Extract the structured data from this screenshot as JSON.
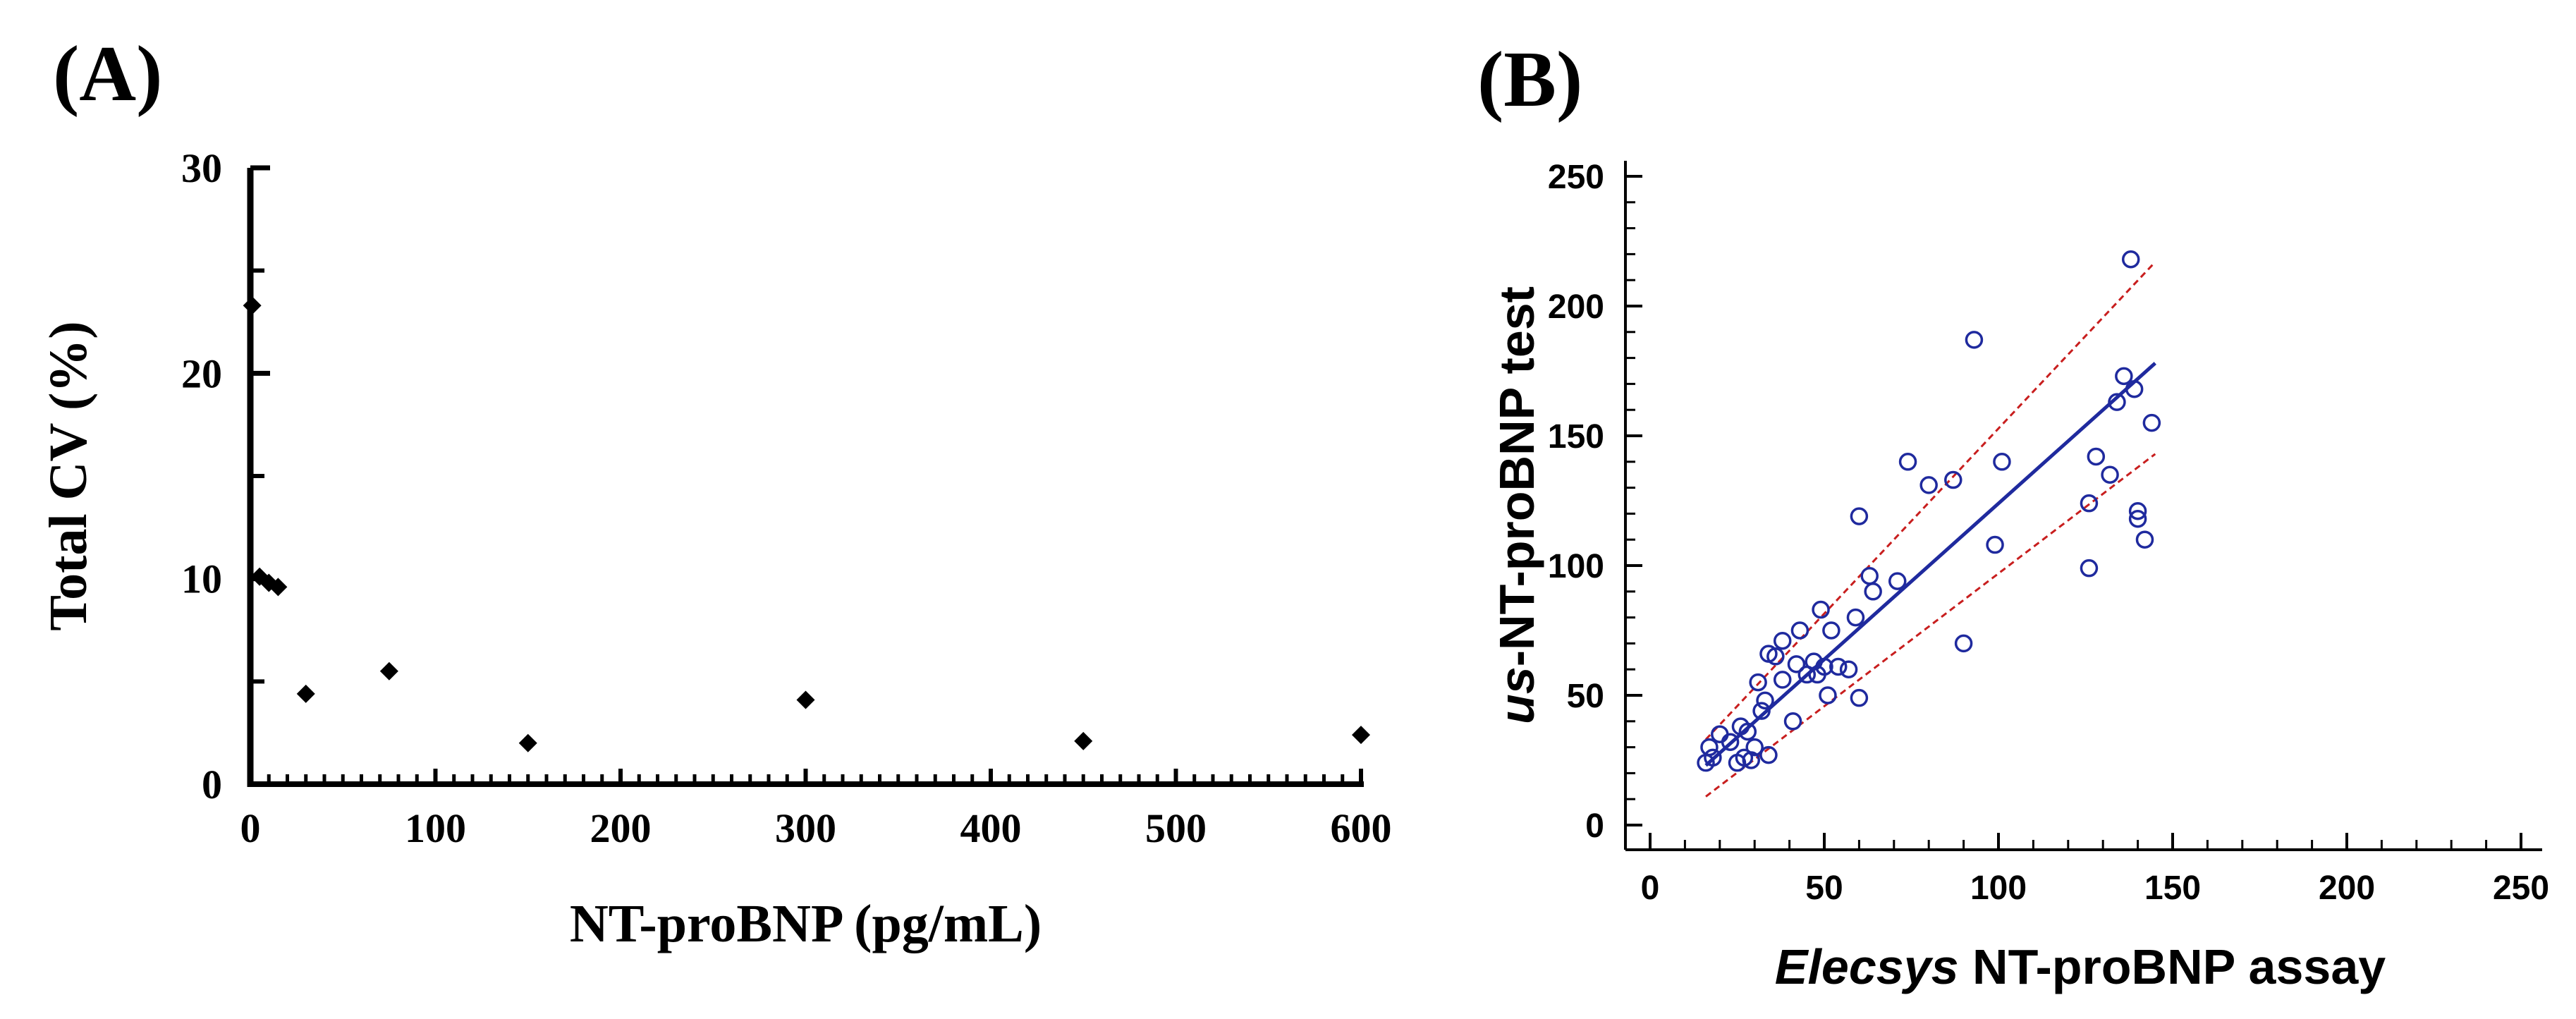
{
  "panel_a": {
    "letter": "(A)"
  },
  "panel_b": {
    "letter": "(B)"
  },
  "chart_data": [
    {
      "id": "A",
      "type": "scatter",
      "title": "",
      "xlabel": "NT-proBNP (pg/mL)",
      "ylabel": "Total CV (%)",
      "xlim": [
        0,
        600
      ],
      "ylim": [
        0,
        30
      ],
      "xticks": [
        0,
        100,
        200,
        300,
        400,
        500,
        600
      ],
      "yticks": [
        0,
        10,
        20,
        30
      ],
      "x_minor_step": 10,
      "y_minor_step": 5,
      "marker": "diamond",
      "marker_color": "#000000",
      "points": [
        {
          "x": 1,
          "y": 23.3
        },
        {
          "x": 5,
          "y": 10.1
        },
        {
          "x": 10,
          "y": 9.8
        },
        {
          "x": 15,
          "y": 9.6
        },
        {
          "x": 30,
          "y": 4.4
        },
        {
          "x": 75,
          "y": 5.5
        },
        {
          "x": 150,
          "y": 2.0
        },
        {
          "x": 300,
          "y": 4.1
        },
        {
          "x": 450,
          "y": 2.1
        },
        {
          "x": 600,
          "y": 2.4
        }
      ]
    },
    {
      "id": "B",
      "type": "scatter",
      "title": "",
      "xlabel_italic": "Elecsys",
      "xlabel_rest": " NT-proBNP assay",
      "ylabel_italic": "us",
      "ylabel_rest": "-NT-proBNP test",
      "xlim": [
        0,
        250
      ],
      "ylim": [
        0,
        250
      ],
      "xticks": [
        0,
        50,
        100,
        150,
        200,
        250
      ],
      "yticks": [
        0,
        50,
        100,
        150,
        200,
        250
      ],
      "x_minor_step": 10,
      "y_minor_step": 10,
      "marker": "open-circle",
      "marker_color": "#1f2a9e",
      "fit_color": "#1f2a9e",
      "band_color": "#c81e1e",
      "regression_line": {
        "x": [
          16,
          145
        ],
        "y": [
          23,
          178
        ]
      },
      "band_upper": {
        "x": [
          16,
          145
        ],
        "y": [
          33,
          217
        ]
      },
      "band_lower": {
        "x": [
          16,
          145
        ],
        "y": [
          11,
          143
        ]
      },
      "points": [
        {
          "x": 16,
          "y": 24
        },
        {
          "x": 17,
          "y": 30
        },
        {
          "x": 18,
          "y": 26
        },
        {
          "x": 20,
          "y": 35
        },
        {
          "x": 23,
          "y": 32
        },
        {
          "x": 25,
          "y": 24
        },
        {
          "x": 26,
          "y": 38
        },
        {
          "x": 27,
          "y": 26
        },
        {
          "x": 28,
          "y": 36
        },
        {
          "x": 29,
          "y": 25
        },
        {
          "x": 30,
          "y": 30
        },
        {
          "x": 31,
          "y": 55
        },
        {
          "x": 32,
          "y": 44
        },
        {
          "x": 33,
          "y": 48
        },
        {
          "x": 34,
          "y": 66
        },
        {
          "x": 34,
          "y": 27
        },
        {
          "x": 36,
          "y": 65
        },
        {
          "x": 38,
          "y": 71
        },
        {
          "x": 38,
          "y": 56
        },
        {
          "x": 41,
          "y": 40
        },
        {
          "x": 42,
          "y": 62
        },
        {
          "x": 43,
          "y": 75
        },
        {
          "x": 45,
          "y": 58
        },
        {
          "x": 47,
          "y": 63
        },
        {
          "x": 48,
          "y": 58
        },
        {
          "x": 49,
          "y": 83
        },
        {
          "x": 50,
          "y": 61
        },
        {
          "x": 51,
          "y": 50
        },
        {
          "x": 52,
          "y": 75
        },
        {
          "x": 54,
          "y": 61
        },
        {
          "x": 57,
          "y": 60
        },
        {
          "x": 59,
          "y": 80
        },
        {
          "x": 60,
          "y": 119
        },
        {
          "x": 60,
          "y": 49
        },
        {
          "x": 63,
          "y": 96
        },
        {
          "x": 64,
          "y": 90
        },
        {
          "x": 71,
          "y": 94
        },
        {
          "x": 74,
          "y": 140
        },
        {
          "x": 80,
          "y": 131
        },
        {
          "x": 87,
          "y": 133
        },
        {
          "x": 90,
          "y": 70
        },
        {
          "x": 93,
          "y": 187
        },
        {
          "x": 99,
          "y": 108
        },
        {
          "x": 101,
          "y": 140
        },
        {
          "x": 126,
          "y": 99
        },
        {
          "x": 126,
          "y": 124
        },
        {
          "x": 128,
          "y": 142
        },
        {
          "x": 132,
          "y": 135
        },
        {
          "x": 134,
          "y": 163
        },
        {
          "x": 136,
          "y": 173
        },
        {
          "x": 138,
          "y": 218
        },
        {
          "x": 139,
          "y": 168
        },
        {
          "x": 140,
          "y": 121
        },
        {
          "x": 140,
          "y": 118
        },
        {
          "x": 142,
          "y": 110
        },
        {
          "x": 144,
          "y": 155
        }
      ]
    }
  ]
}
